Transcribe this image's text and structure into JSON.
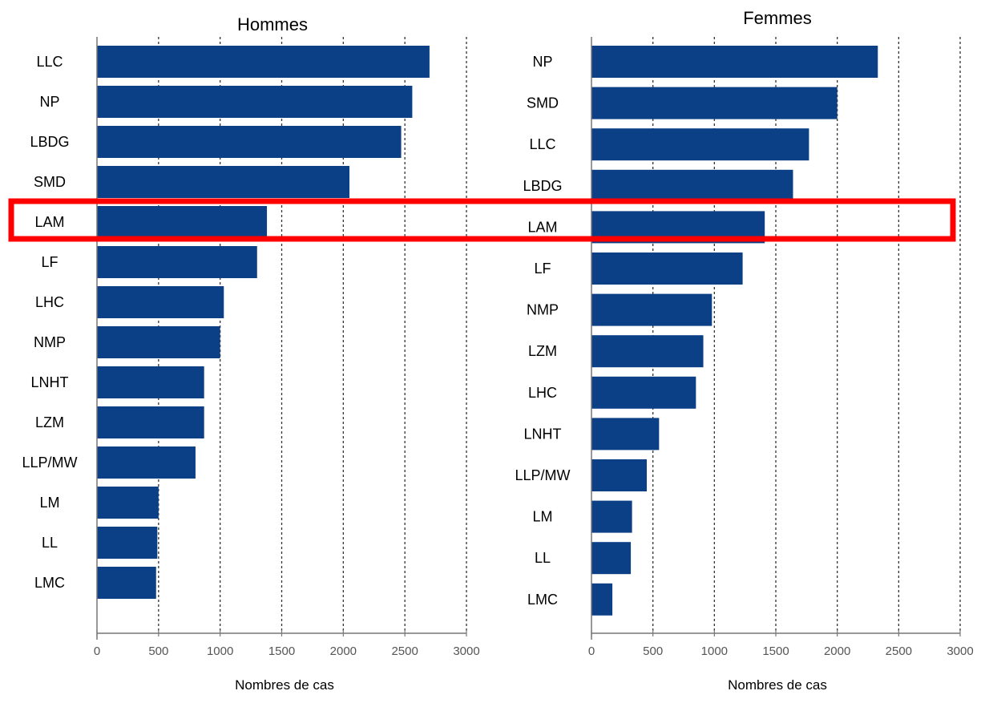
{
  "chart_data": [
    {
      "type": "bar",
      "orientation": "horizontal",
      "title": "Hommes",
      "xlabel": "Nombres de cas",
      "ylabel": "",
      "xlim": [
        0,
        3000
      ],
      "ticks": [
        "0",
        "500",
        "1000",
        "1500",
        "2000",
        "2500",
        "3000"
      ],
      "grid": "vertical dotted",
      "categories": [
        "LLC",
        "NP",
        "LBDG",
        "SMD",
        "LAM",
        "LF",
        "LHC",
        "NMP",
        "LNHT",
        "LZM",
        "LLP/MW",
        "LM",
        "LL",
        "LMC"
      ],
      "values": [
        2700,
        2560,
        2470,
        2050,
        1380,
        1300,
        1030,
        1000,
        870,
        870,
        800,
        500,
        490,
        480
      ],
      "bar_color": "#0b3f86",
      "highlight_category": "LAM"
    },
    {
      "type": "bar",
      "orientation": "horizontal",
      "title": "Femmes",
      "xlabel": "Nombres de cas",
      "ylabel": "",
      "xlim": [
        0,
        3000
      ],
      "ticks": [
        "0",
        "500",
        "1000",
        "1500",
        "2000",
        "2500",
        "3000"
      ],
      "grid": "vertical dotted",
      "categories": [
        "NP",
        "SMD",
        "LLC",
        "LBDG",
        "LAM",
        "LF",
        "NMP",
        "LZM",
        "LHC",
        "LNHT",
        "LLP/MW",
        "LM",
        "LL",
        "LMC"
      ],
      "values": [
        2330,
        2000,
        1770,
        1640,
        1410,
        1230,
        980,
        910,
        850,
        550,
        450,
        330,
        320,
        170
      ],
      "bar_color": "#0b3f86",
      "highlight_category": "LAM"
    }
  ],
  "highlight": {
    "label": "LAM",
    "color": "#ff0000"
  }
}
